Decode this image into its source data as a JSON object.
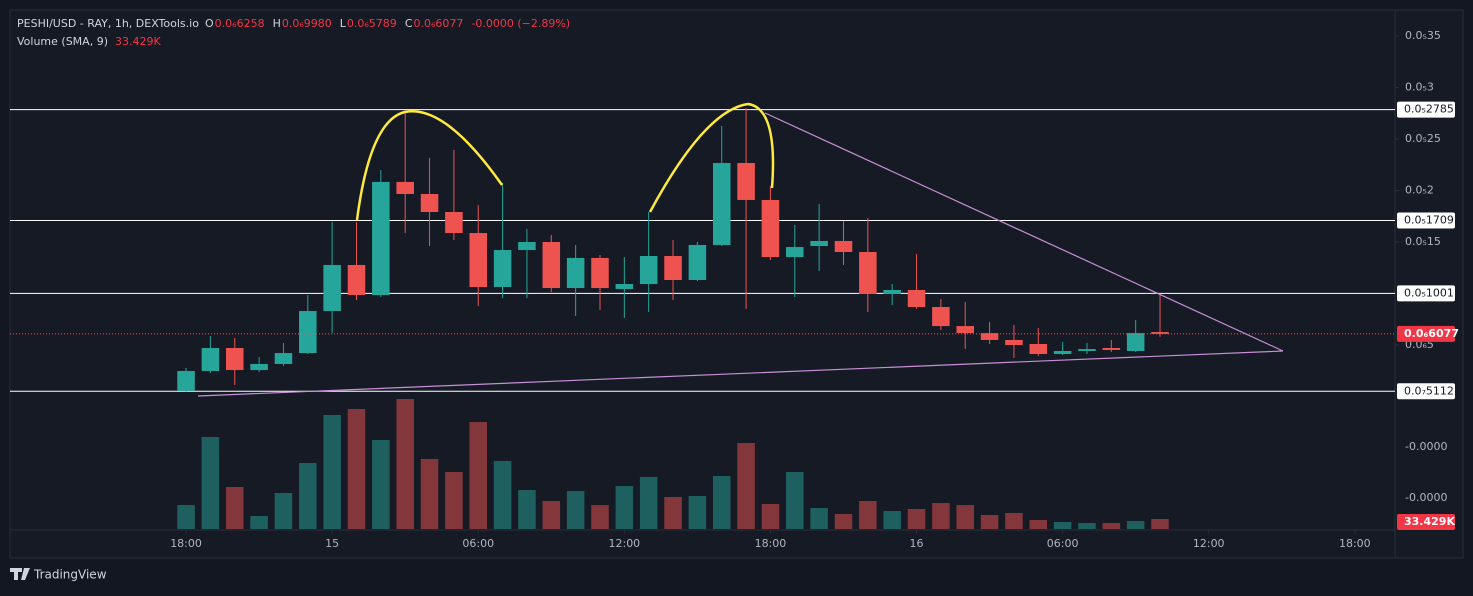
{
  "header": {
    "symbol": "PESHI/USD - RAY, 1h, DEXTools.io",
    "ohlc": [
      {
        "key": "O",
        "text": "0.0₆6258"
      },
      {
        "key": "H",
        "text": "0.0₆9980"
      },
      {
        "key": "L",
        "text": "0.0₆5789"
      },
      {
        "key": "C",
        "text": "0.0₆6077"
      }
    ],
    "change": "-0.0000 (−2.89%)",
    "volume_label": "Volume (SMA, 9)",
    "volume_value": "33.429K"
  },
  "brand": "TradingView",
  "chart_data": {
    "type": "candlestick",
    "up_color": "#26a69a",
    "down_color": "#ef5350",
    "open": [
      5.5e-08,
      2.48e-07,
      4.71e-07,
      2.57e-07,
      3.16e-07,
      4.22e-07,
      8.3e-07,
      1.277e-06,
      9.85e-07,
      2.083e-06,
      1.966e-06,
      1.791e-06,
      1.587e-06,
      1.063e-06,
      1.422e-06,
      1.5e-06,
      1.053e-06,
      1.345e-06,
      1.044e-06,
      1.092e-06,
      1.364e-06,
      1.131e-06,
      1.471e-06,
      2.267e-06,
      1.908e-06,
      1.354e-06,
      1.461e-06,
      1.51e-06,
      1.403e-06,
      9.95e-07,
      1.034e-06,
      8.69e-07,
      6.84e-07,
      6.16e-07,
      5.49e-07,
      5.1e-07,
      4.13e-07,
      4.42e-07,
      4.71e-07,
      4.42e-07,
      6.258e-07
    ],
    "high": [
      2.77e-07,
      5.87e-07,
      5.68e-07,
      3.83e-07,
      5.19e-07,
      9.85e-07,
      1.694e-06,
      1.694e-06,
      2.199e-06,
      2.782e-06,
      2.316e-06,
      2.393e-06,
      1.859e-06,
      2.073e-06,
      1.626e-06,
      1.568e-06,
      1.471e-06,
      1.374e-06,
      1.354e-06,
      1.791e-06,
      1.519e-06,
      1.5e-06,
      2.626e-06,
      2.801e-06,
      2.044e-06,
      1.665e-06,
      1.869e-06,
      1.704e-06,
      1.733e-06,
      1.092e-06,
      1.383e-06,
      9.47e-07,
      9.17e-07,
      7.23e-07,
      6.94e-07,
      6.65e-07,
      5.29e-07,
      5.19e-07,
      5.49e-07,
      7.43e-07,
      9.98e-07
    ],
    "low": [
      5.1e-08,
      2.28e-07,
      1.12e-07,
      2.38e-07,
      2.96e-07,
      4.13e-07,
      6.16e-07,
      9.37e-07,
      9.66e-07,
      1.587e-06,
      1.461e-06,
      1.519e-06,
      8.79e-07,
      9.56e-07,
      9.56e-07,
      1.015e-06,
      7.82e-07,
      8.4e-07,
      7.62e-07,
      8.2e-07,
      9.37e-07,
      1.121e-06,
      1.461e-06,
      8.5e-07,
      1.325e-06,
      9.66e-07,
      1.218e-06,
      1.277e-06,
      8.2e-07,
      8.88e-07,
      8.5e-07,
      6.46e-07,
      4.61e-07,
      5.1e-07,
      3.74e-07,
      3.93e-07,
      4.03e-07,
      4.13e-07,
      4.32e-07,
      4.32e-07,
      5.789e-07
    ],
    "close": [
      2.48e-07,
      4.71e-07,
      2.57e-07,
      3.16e-07,
      4.22e-07,
      8.3e-07,
      1.277e-06,
      9.85e-07,
      2.083e-06,
      1.966e-06,
      1.791e-06,
      1.587e-06,
      1.063e-06,
      1.422e-06,
      1.5e-06,
      1.053e-06,
      1.345e-06,
      1.053e-06,
      1.092e-06,
      1.364e-06,
      1.131e-06,
      1.471e-06,
      2.267e-06,
      1.908e-06,
      1.354e-06,
      1.451e-06,
      1.51e-06,
      1.403e-06,
      9.95e-07,
      1.034e-06,
      8.69e-07,
      6.84e-07,
      6.16e-07,
      5.49e-07,
      5e-07,
      4.13e-07,
      4.42e-07,
      4.61e-07,
      4.52e-07,
      6.16e-07,
      6.077e-07
    ],
    "volume": [
      80200,
      307600,
      140400,
      43500,
      120300,
      220600,
      381100,
      401200,
      297500,
      434600,
      234000,
      190600,
      357700,
      227300,
      130400,
      93600,
      127000,
      80200,
      143700,
      173800,
      107000,
      110300,
      177200,
      287500,
      83600,
      190600,
      70200,
      50100,
      93600,
      60200,
      66900,
      86900,
      80200,
      46800,
      53500,
      30100,
      23400,
      20100,
      20100,
      26700,
      33429
    ],
    "volume_last": {
      "value": 33429,
      "label": "33.429K"
    },
    "volume_ylim": [
      0,
      1735000
    ],
    "volume_axis_labels": [
      "-0.0000",
      "-0.0000"
    ],
    "xlim": [
      -7.23,
      49.65
    ],
    "xticks": [
      {
        "value": 0,
        "label": "18:00"
      },
      {
        "value": 6,
        "label": "15"
      },
      {
        "value": 12,
        "label": "06:00"
      },
      {
        "value": 18,
        "label": "12:00"
      },
      {
        "value": 24,
        "label": "18:00"
      },
      {
        "value": 30,
        "label": "16"
      },
      {
        "value": 36,
        "label": "06:00"
      },
      {
        "value": 42,
        "label": "12:00"
      },
      {
        "value": 48,
        "label": "18:00"
      }
    ],
    "ylim": [
      -1.286e-06,
      3.752e-06
    ],
    "yticks": [
      {
        "value": 3.5e-06,
        "label": "0.0₅35"
      },
      {
        "value": 3e-06,
        "label": "0.0₅3"
      },
      {
        "value": 2.5e-06,
        "label": "0.0₅25"
      },
      {
        "value": 2e-06,
        "label": "0.0₅2"
      },
      {
        "value": 1.5e-06,
        "label": "0.0₅15"
      },
      {
        "value": 5e-07,
        "label": "0.0₆5"
      }
    ],
    "levels": [
      {
        "value": 2.785e-06,
        "label": "0.0₅2785"
      },
      {
        "value": 1.709e-06,
        "label": "0.0₅1709"
      },
      {
        "value": 1.001e-06,
        "label": "0.0₅1001"
      },
      {
        "value": 5.112e-08,
        "label": "0.0₇5112"
      }
    ],
    "last_price": {
      "value": 6.077e-07,
      "label": "0.0₆6077"
    }
  }
}
